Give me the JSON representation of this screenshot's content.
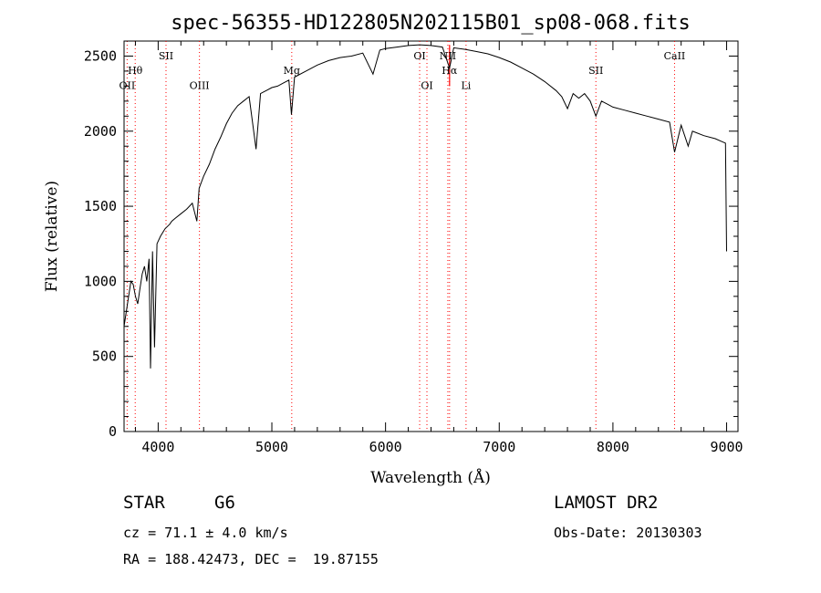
{
  "chart_data": {
    "type": "line",
    "title": "spec-56355-HD122805N202115B01_sp08-068.fits",
    "xlabel": "Wavelength (Å)",
    "ylabel": "Flux (relative)",
    "xlim": [
      3700,
      9100
    ],
    "ylim": [
      0,
      2600
    ],
    "xticks": [
      4000,
      5000,
      6000,
      7000,
      8000,
      9000
    ],
    "yticks": [
      0,
      500,
      1000,
      1500,
      2000,
      2500
    ],
    "grid": false,
    "series": [
      {
        "x": [
          3700,
          3720,
          3740,
          3760,
          3780,
          3800,
          3820,
          3840,
          3860,
          3880,
          3900,
          3920,
          3933,
          3950,
          3968,
          3990,
          4020,
          4060,
          4101,
          4120,
          4150,
          4200,
          4250,
          4300,
          4340,
          4360,
          4400,
          4450,
          4500,
          4550,
          4600,
          4650,
          4700,
          4750,
          4800,
          4861,
          4900,
          4950,
          5000,
          5050,
          5100,
          5150,
          5172,
          5200,
          5300,
          5400,
          5500,
          5600,
          5700,
          5800,
          5890,
          5950,
          6000,
          6100,
          6200,
          6300,
          6400,
          6500,
          6563,
          6600,
          6700,
          6800,
          6900,
          7000,
          7100,
          7200,
          7300,
          7400,
          7500,
          7550,
          7600,
          7650,
          7700,
          7750,
          7800,
          7850,
          7900,
          7950,
          8000,
          8100,
          8200,
          8300,
          8400,
          8498,
          8542,
          8600,
          8662,
          8700,
          8800,
          8900,
          8960,
          8990,
          9000
        ],
        "y": [
          700,
          800,
          900,
          1000,
          980,
          900,
          850,
          950,
          1050,
          1100,
          1000,
          1150,
          420,
          1200,
          560,
          1250,
          1300,
          1350,
          1380,
          1400,
          1420,
          1450,
          1480,
          1520,
          1400,
          1620,
          1700,
          1780,
          1880,
          1960,
          2050,
          2120,
          2170,
          2200,
          2230,
          1880,
          2250,
          2270,
          2290,
          2300,
          2320,
          2340,
          2110,
          2360,
          2400,
          2440,
          2470,
          2490,
          2500,
          2520,
          2380,
          2540,
          2550,
          2560,
          2570,
          2575,
          2570,
          2560,
          2420,
          2555,
          2545,
          2530,
          2515,
          2490,
          2460,
          2420,
          2380,
          2330,
          2270,
          2230,
          2150,
          2250,
          2220,
          2250,
          2200,
          2100,
          2200,
          2180,
          2160,
          2140,
          2120,
          2100,
          2080,
          2060,
          1860,
          2040,
          1900,
          2000,
          1970,
          1950,
          1930,
          1920,
          1200
        ],
        "color": "#000000"
      }
    ],
    "annotations": [
      {
        "label": "Hθ",
        "x": 3798,
        "y": 2380,
        "color": "#ff0000"
      },
      {
        "label": "OII",
        "x": 3727,
        "y": 2280,
        "color": "#ff0000"
      },
      {
        "label": "SII",
        "x": 4069,
        "y": 2480,
        "color": "#ff0000"
      },
      {
        "label": "OIII",
        "x": 4363,
        "y": 2280,
        "color": "#ff0000"
      },
      {
        "label": "Mg",
        "x": 5175,
        "y": 2380,
        "color": "#ff0000"
      },
      {
        "label": "OI",
        "x": 6300,
        "y": 2480,
        "color": "#ff0000"
      },
      {
        "label": "OI",
        "x": 6364,
        "y": 2280,
        "color": "#ff0000"
      },
      {
        "label": "NII",
        "x": 6548,
        "y": 2480,
        "color": "#ff0000"
      },
      {
        "label": "Hα",
        "x": 6563,
        "y": 2380,
        "color": "#ff0000"
      },
      {
        "label": "Li",
        "x": 6708,
        "y": 2280,
        "color": "#ff0000"
      },
      {
        "label": "SII",
        "x": 7850,
        "y": 2380,
        "color": "#ff0000"
      },
      {
        "label": "CaII",
        "x": 8542,
        "y": 2480,
        "color": "#ff0000"
      }
    ],
    "line_markers": [
      3727,
      3798,
      4069,
      4363,
      5175,
      6300,
      6364,
      6548,
      6563,
      6708,
      7850,
      8542
    ],
    "marker_color": "#ff0000"
  },
  "info": {
    "class_label": "STAR",
    "subclass": "G6",
    "survey": "LAMOST DR2",
    "cz": "cz = 71.1 ± 4.0 km/s",
    "obs_date": "Obs-Date: 20130303",
    "coords": "RA = 188.42473, DEC =  19.87155"
  }
}
